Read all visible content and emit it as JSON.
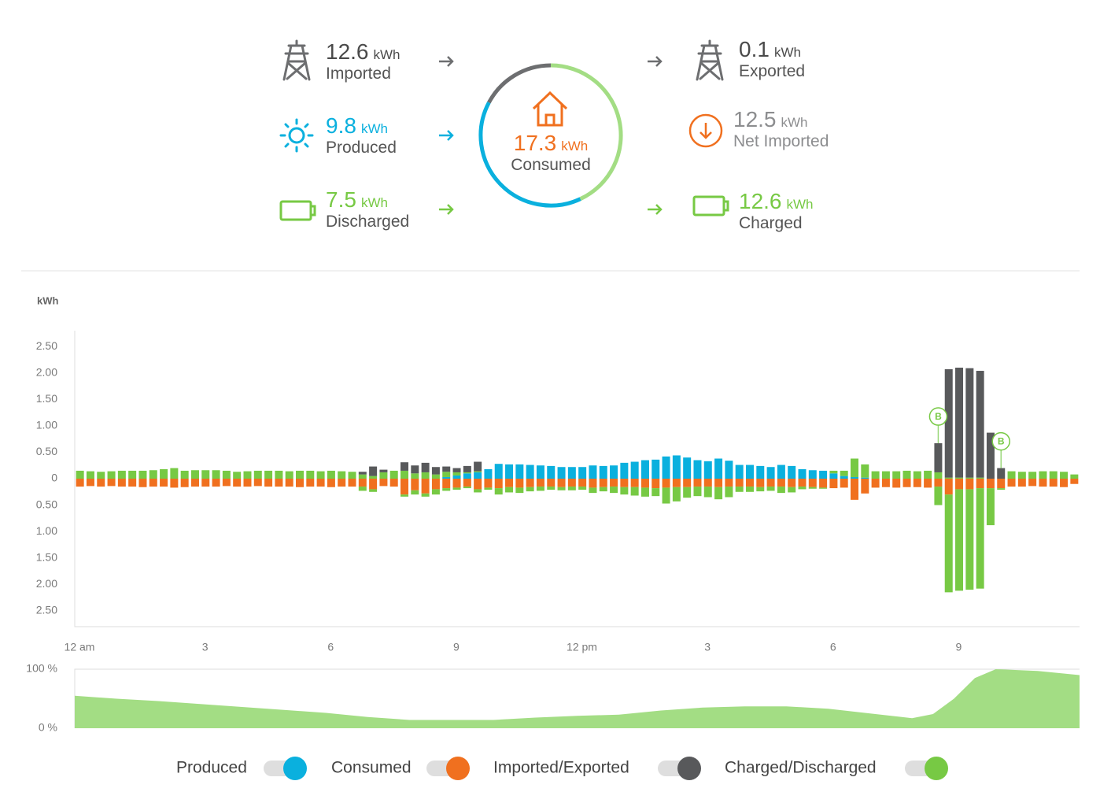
{
  "summary": {
    "imported": {
      "value": 12.6,
      "unit": "kWh",
      "label": "Imported"
    },
    "produced": {
      "value": 9.8,
      "unit": "kWh",
      "label": "Produced"
    },
    "discharged": {
      "value": 7.5,
      "unit": "kWh",
      "label": "Discharged"
    },
    "consumed": {
      "value": 17.3,
      "unit": "kWh",
      "label": "Consumed"
    },
    "exported": {
      "value": 0.1,
      "unit": "kWh",
      "label": "Exported"
    },
    "net_imported": {
      "value": 12.5,
      "unit": "kWh",
      "label": "Net Imported"
    },
    "charged": {
      "value": 12.6,
      "unit": "kWh",
      "label": "Charged"
    }
  },
  "chart_data": [
    {
      "type": "bar",
      "stacked": true,
      "grid": false,
      "y_label": "kWh",
      "xlim": [
        0,
        24
      ],
      "xticks": [
        {
          "value": 0,
          "label": "12 am"
        },
        3,
        6,
        9,
        {
          "value": 12,
          "label": "12 pm"
        },
        {
          "value": 15,
          "label": "3"
        },
        {
          "value": 18,
          "label": "6"
        },
        {
          "value": 21,
          "label": "9"
        }
      ],
      "ylim": [
        -2.8,
        2.8
      ],
      "yticks": [
        {
          "value": 2.5,
          "label": "2.50"
        },
        {
          "value": 2,
          "label": "2.00"
        },
        {
          "value": 1.5,
          "label": "1.50"
        },
        {
          "value": 1,
          "label": "1.00"
        },
        {
          "value": 0.5,
          "label": "0.50"
        },
        0,
        {
          "value": -0.5,
          "label": "0.50"
        },
        {
          "value": -1,
          "label": "1.00"
        },
        {
          "value": -1.5,
          "label": "1.50"
        },
        {
          "value": -2,
          "label": "2.00"
        },
        {
          "value": -2.5,
          "label": "2.50"
        }
      ],
      "series": [
        {
          "name": "Produced",
          "color": "#0ab0de",
          "values": [
            0,
            0,
            0,
            0,
            0,
            0,
            0,
            0,
            0,
            0,
            0,
            0,
            0,
            0,
            0,
            0,
            0,
            0,
            0,
            0,
            0,
            0,
            0,
            0,
            0,
            0,
            0,
            0,
            0,
            0,
            0,
            0,
            0,
            0,
            0,
            0.03,
            0.06,
            0.1,
            0.12,
            0.18,
            0.28,
            0.27,
            0.27,
            0.26,
            0.25,
            0.24,
            0.22,
            0.22,
            0.22,
            0.25,
            0.24,
            0.25,
            0.3,
            0.32,
            0.35,
            0.36,
            0.42,
            0.44,
            0.4,
            0.35,
            0.33,
            0.38,
            0.34,
            0.26,
            0.26,
            0.24,
            0.22,
            0.26,
            0.24,
            0.18,
            0.16,
            0.15,
            0.1,
            0.05,
            0.03,
            0.02,
            0,
            0,
            0,
            0,
            0,
            0,
            0,
            0,
            0,
            0,
            0,
            0,
            0,
            0,
            0,
            0,
            0,
            0,
            0,
            0
          ]
        },
        {
          "name": "Consumed",
          "color": "#f0701f",
          "values": [
            -0.15,
            -0.14,
            -0.15,
            -0.14,
            -0.15,
            -0.15,
            -0.16,
            -0.15,
            -0.15,
            -0.17,
            -0.16,
            -0.15,
            -0.15,
            -0.15,
            -0.14,
            -0.15,
            -0.15,
            -0.14,
            -0.15,
            -0.15,
            -0.15,
            -0.16,
            -0.15,
            -0.15,
            -0.16,
            -0.15,
            -0.15,
            -0.15,
            -0.2,
            -0.14,
            -0.15,
            -0.3,
            -0.22,
            -0.28,
            -0.2,
            -0.18,
            -0.17,
            -0.15,
            -0.2,
            -0.17,
            -0.18,
            -0.16,
            -0.17,
            -0.16,
            -0.15,
            -0.15,
            -0.16,
            -0.15,
            -0.15,
            -0.17,
            -0.16,
            -0.15,
            -0.16,
            -0.16,
            -0.17,
            -0.18,
            -0.17,
            -0.16,
            -0.16,
            -0.15,
            -0.15,
            -0.16,
            -0.15,
            -0.15,
            -0.15,
            -0.16,
            -0.15,
            -0.15,
            -0.16,
            -0.15,
            -0.16,
            -0.17,
            -0.18,
            -0.17,
            -0.4,
            -0.28,
            -0.17,
            -0.16,
            -0.17,
            -0.16,
            -0.16,
            -0.17,
            -0.15,
            -0.3,
            -0.2,
            -0.2,
            -0.18,
            -0.18,
            -0.18,
            -0.15,
            -0.15,
            -0.14,
            -0.15,
            -0.15,
            -0.16,
            -0.1
          ]
        },
        {
          "name": "Imported/Exported",
          "color": "#58595b",
          "values": [
            0,
            0,
            0,
            0,
            0,
            0,
            0,
            0,
            0,
            0,
            0,
            0,
            0,
            0,
            0,
            0,
            0,
            0,
            0,
            0,
            0,
            0,
            0,
            0,
            0,
            0,
            0,
            0.05,
            0.18,
            0.05,
            0,
            0.16,
            0.15,
            0.18,
            0.14,
            0.1,
            0.08,
            0.12,
            0.18,
            0,
            0,
            0,
            0,
            0,
            0,
            0,
            0,
            0,
            0,
            0,
            0,
            0,
            0,
            0,
            0,
            0,
            0,
            0,
            0,
            0,
            0,
            0,
            0,
            0,
            0,
            0,
            0,
            0,
            0,
            0,
            0,
            0,
            0,
            0,
            0,
            0,
            0,
            0,
            0,
            0,
            0,
            0,
            0.55,
            2.05,
            2.08,
            2.07,
            2.02,
            0.87,
            0.2,
            0,
            0,
            0,
            0,
            0,
            0,
            0
          ]
        },
        {
          "name": "Charged/Discharged",
          "color": "#77c944",
          "values": [
            0.15,
            0.14,
            0.13,
            0.14,
            0.15,
            0.15,
            0.15,
            0.16,
            0.18,
            0.2,
            0.15,
            0.16,
            0.16,
            0.16,
            0.15,
            0.13,
            0.14,
            0.15,
            0.15,
            0.15,
            0.14,
            0.15,
            0.15,
            0.14,
            0.15,
            0.14,
            0.13,
            0.08,
            0.05,
            0.12,
            0.15,
            0.15,
            0.1,
            0.12,
            0.08,
            0.1,
            0.06,
            0.02,
            0.02,
            0,
            0,
            0,
            0,
            0,
            0,
            0,
            0,
            0,
            0,
            0,
            0,
            0,
            0,
            0,
            0,
            0,
            0,
            0,
            0,
            0,
            0,
            0,
            0,
            0,
            0,
            0,
            0,
            0,
            0,
            0,
            0,
            0,
            0.05,
            0.1,
            0.35,
            0.25,
            0.14,
            0.14,
            0.14,
            0.15,
            0.14,
            0.15,
            0.12,
            0.02,
            0.02,
            0.02,
            0.02,
            0,
            0,
            0.14,
            0.13,
            0.13,
            0.14,
            0.14,
            0.13,
            0.08
          ],
          "values_charged": [
            0,
            0,
            0,
            0,
            0,
            0,
            0,
            0,
            0,
            0,
            0,
            0,
            0,
            0,
            0,
            0,
            0,
            0,
            0,
            0,
            0,
            0,
            0,
            0,
            0,
            0,
            0,
            -0.08,
            -0.05,
            0,
            0,
            -0.04,
            -0.08,
            -0.06,
            -0.1,
            -0.05,
            -0.04,
            -0.03,
            -0.06,
            -0.04,
            -0.12,
            -0.1,
            -0.1,
            -0.08,
            -0.08,
            -0.06,
            -0.06,
            -0.07,
            -0.06,
            -0.1,
            -0.08,
            -0.12,
            -0.14,
            -0.16,
            -0.17,
            -0.15,
            -0.3,
            -0.27,
            -0.2,
            -0.18,
            -0.2,
            -0.23,
            -0.2,
            -0.1,
            -0.1,
            -0.08,
            -0.08,
            -0.12,
            -0.1,
            -0.05,
            -0.03,
            -0.02,
            0,
            0,
            0,
            0,
            0,
            0,
            0,
            0,
            0,
            0,
            -0.35,
            -1.85,
            -1.92,
            -1.9,
            -1.9,
            -0.7,
            -0.03,
            0,
            0,
            0,
            0,
            0,
            0,
            0
          ]
        }
      ],
      "annotations": [
        {
          "text": "B",
          "x": 20.5
        },
        {
          "text": "B",
          "x": 22
        }
      ]
    },
    {
      "type": "area",
      "color": "#a3dd84",
      "xlim": [
        0,
        24
      ],
      "ylim": [
        0,
        100
      ],
      "yticks": [
        {
          "value": 100,
          "label": "100 %"
        },
        {
          "value": 0,
          "label": "0 %"
        }
      ],
      "x": [
        0,
        1,
        2,
        3,
        4,
        5,
        6,
        7,
        8,
        9,
        10,
        11,
        12,
        13,
        14,
        15,
        16,
        17,
        18,
        19,
        20,
        20.5,
        21,
        21.5,
        22,
        23,
        24
      ],
      "values": [
        55,
        50,
        46,
        41,
        36,
        31,
        26,
        19,
        14,
        14,
        14,
        18,
        21,
        23,
        30,
        35,
        37,
        37,
        33,
        25,
        17,
        24,
        50,
        85,
        100,
        97,
        90
      ]
    }
  ]
}
